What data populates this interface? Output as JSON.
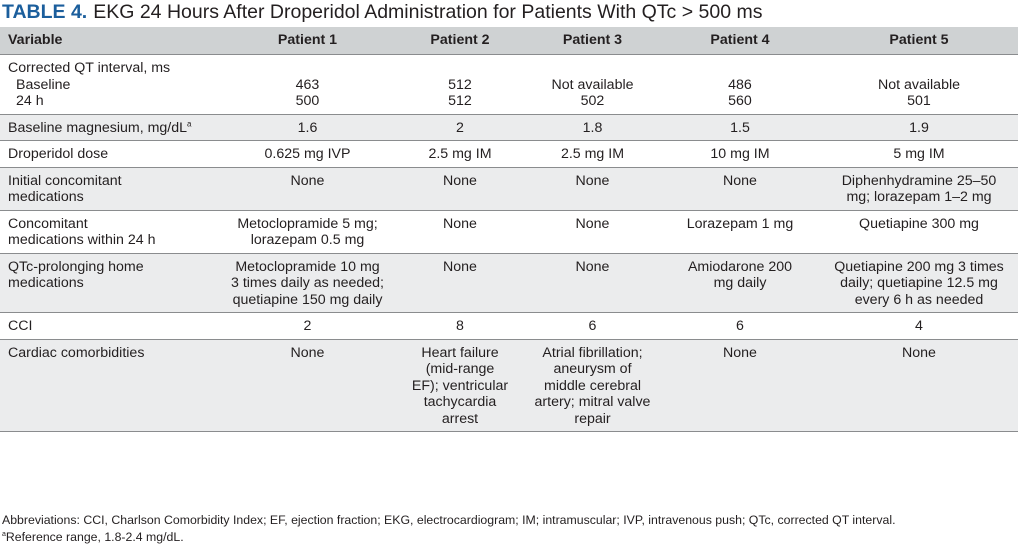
{
  "title": {
    "label": "TABLE 4.",
    "text": "EKG 24 Hours After Droperidol Administration for Patients With QTc > 500 ms"
  },
  "table": {
    "headers": [
      "Variable",
      "Patient 1",
      "Patient 2",
      "Patient 3",
      "Patient 4",
      "Patient 5"
    ],
    "qt": {
      "label": "Corrected QT interval, ms",
      "baseline_label": "Baseline",
      "h24_label": "24 h",
      "baseline": [
        "463",
        "512",
        "Not available",
        "486",
        "Not available"
      ],
      "h24": [
        "500",
        "512",
        "502",
        "560",
        "501"
      ]
    },
    "magnesium": {
      "label": "Baseline magnesium, mg/dL",
      "marker": "a",
      "values": [
        "1.6",
        "2",
        "1.8",
        "1.5",
        "1.9"
      ]
    },
    "droperidol": {
      "label": "Droperidol dose",
      "values": [
        "0.625 mg IVP",
        "2.5 mg IM",
        "2.5 mg IM",
        "10 mg IM",
        "5 mg IM"
      ]
    },
    "initial_meds": {
      "label": [
        "Initial concomitant",
        "medications"
      ],
      "values": [
        [
          "None"
        ],
        [
          "None"
        ],
        [
          "None"
        ],
        [
          "None"
        ],
        [
          "Diphenhydramine 25–50",
          "mg; lorazepam 1–2 mg"
        ]
      ]
    },
    "meds_24h": {
      "label": [
        "Concomitant",
        "medications within 24 h"
      ],
      "values": [
        [
          "Metoclopramide 5 mg;",
          "lorazepam 0.5 mg"
        ],
        [
          "None"
        ],
        [
          "None"
        ],
        [
          "Lorazepam 1 mg"
        ],
        [
          "Quetiapine 300 mg"
        ]
      ]
    },
    "home_meds": {
      "label": [
        "QTc-prolonging home",
        "medications"
      ],
      "values": [
        [
          "Metoclopramide 10 mg",
          "3 times daily as needed;",
          "quetiapine 150 mg daily"
        ],
        [
          "None"
        ],
        [
          "None"
        ],
        [
          "Amiodarone 200",
          "mg daily"
        ],
        [
          "Quetiapine 200 mg 3 times",
          "daily; quetiapine 12.5 mg",
          "every 6 h as needed"
        ]
      ]
    },
    "cci": {
      "label": "CCI",
      "values": [
        "2",
        "8",
        "6",
        "6",
        "4"
      ]
    },
    "cardiac": {
      "label": "Cardiac comorbidities",
      "values": [
        [
          "None"
        ],
        [
          "Heart failure",
          "(mid-range",
          "EF); ventricular",
          "tachycardia",
          "arrest"
        ],
        [
          "Atrial fibrillation;",
          "aneurysm of",
          "middle cerebral",
          "artery; mitral valve",
          "repair"
        ],
        [
          "None"
        ],
        [
          "None"
        ]
      ]
    }
  },
  "footnotes": {
    "abbreviations": "Abbreviations: CCI, Charlson Comorbidity Index; EF, ejection fraction; EKG, electrocardiogram; IM; intramuscular; IVP, intravenous push; QTc, corrected QT interval.",
    "reference_marker": "a",
    "reference": "Reference range, 1.8-2.4 mg/dL."
  }
}
